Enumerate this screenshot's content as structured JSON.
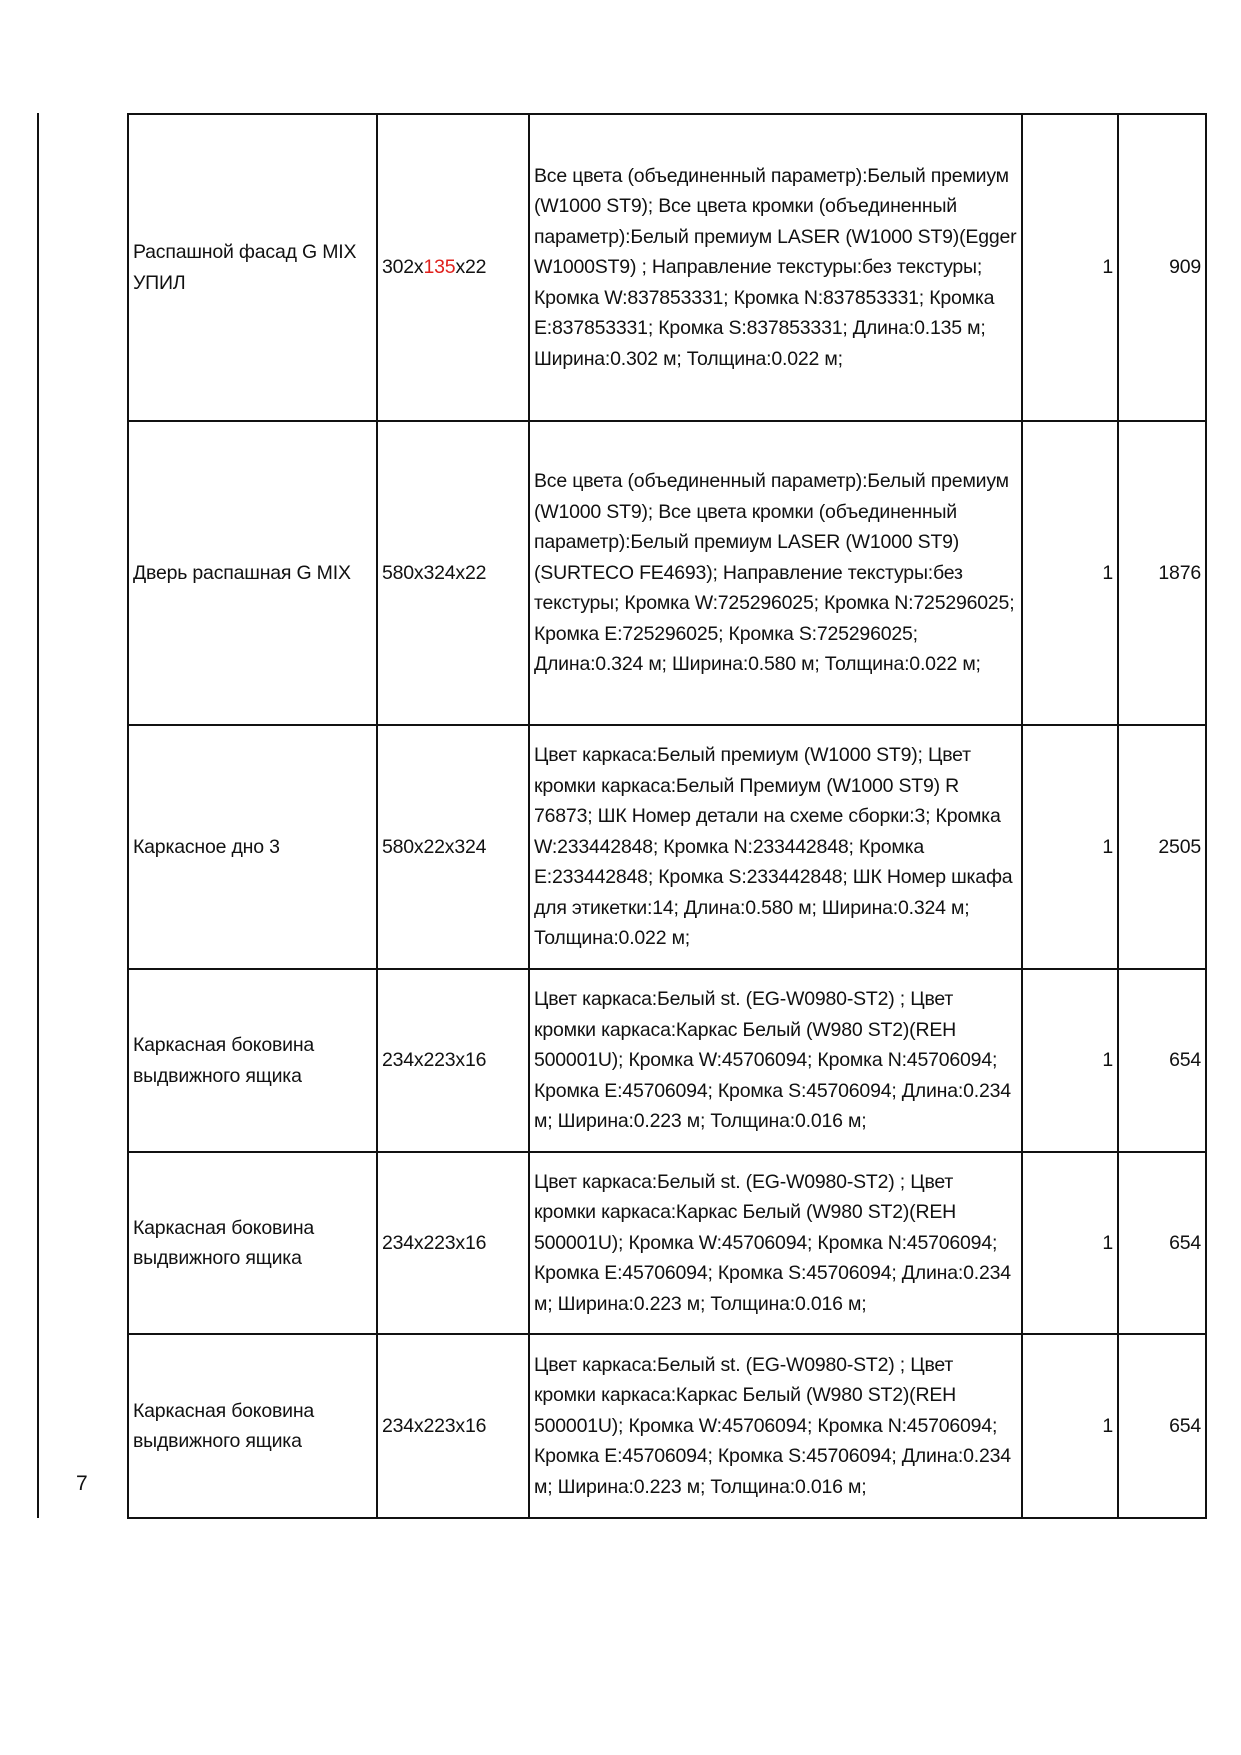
{
  "page_number": "7",
  "highlight_color": "#e0201c",
  "rows": [
    {
      "name": "Распашной фасад G MIX УПИЛ",
      "dims_prefix": "302x",
      "dims_highlight": "135",
      "dims_suffix": "x22",
      "description": "Все цвета (объединенный параметр):Белый премиум (W1000 ST9); Все цвета кромки (объединенный параметр):Белый премиум LASER (W1000 ST9)(Egger W1000ST9) ; Направление текстуры:без текстуры; Кромка W:837853331; Кромка N:837853331; Кромка E:837853331; Кромка S:837853331; Длина:0.135 м; Ширина:0.302 м; Толщина:0.022 м;",
      "qty": "1",
      "price": "909"
    },
    {
      "name": "Дверь распашная G MIX",
      "dims_prefix": "580x324x22",
      "dims_highlight": "",
      "dims_suffix": "",
      "description": "Все цвета (объединенный параметр):Белый премиум (W1000 ST9); Все цвета кромки (объединенный параметр):Белый премиум LASER (W1000 ST9) (SURTECO FE4693); Направление текстуры:без текстуры; Кромка W:725296025; Кромка N:725296025; Кромка E:725296025; Кромка S:725296025; Длина:0.324 м; Ширина:0.580 м; Толщина:0.022 м;",
      "qty": "1",
      "price": "1876"
    },
    {
      "name": "Каркасное дно 3",
      "dims_prefix": "580x22x324",
      "dims_highlight": "",
      "dims_suffix": "",
      "description": "Цвет каркаса:Белый премиум (W1000 ST9); Цвет кромки каркаса:Белый Премиум (W1000 ST9) R 76873; ШК Номер детали на схеме сборки:3; Кромка W:233442848; Кромка N:233442848; Кромка E:233442848; Кромка S:233442848; ШК Номер шкафа для этикетки:14; Длина:0.580 м; Ширина:0.324 м; Толщина:0.022 м;",
      "qty": "1",
      "price": "2505"
    },
    {
      "name": "Каркасная боковина выдвижного ящика",
      "dims_prefix": "234x223x16",
      "dims_highlight": "",
      "dims_suffix": "",
      "description": "Цвет каркаса:Белый st. (EG-W0980-ST2) ; Цвет кромки каркаса:Каркас Белый (W980 ST2)(REH 500001U); Кромка W:45706094; Кромка N:45706094; Кромка E:45706094; Кромка S:45706094; Длина:0.234 м; Ширина:0.223 м; Толщина:0.016 м;",
      "qty": "1",
      "price": "654"
    },
    {
      "name": "Каркасная боковина выдвижного ящика",
      "dims_prefix": "234x223x16",
      "dims_highlight": "",
      "dims_suffix": "",
      "description": "Цвет каркаса:Белый st. (EG-W0980-ST2) ; Цвет кромки каркаса:Каркас Белый (W980 ST2)(REH 500001U); Кромка W:45706094; Кромка N:45706094; Кромка E:45706094; Кромка S:45706094; Длина:0.234 м; Ширина:0.223 м; Толщина:0.016 м;",
      "qty": "1",
      "price": "654"
    },
    {
      "name": "Каркасная боковина выдвижного ящика",
      "dims_prefix": "234x223x16",
      "dims_highlight": "",
      "dims_suffix": "",
      "description": "Цвет каркаса:Белый st. (EG-W0980-ST2) ; Цвет кромки каркаса:Каркас Белый (W980 ST2)(REH 500001U); Кромка W:45706094; Кромка N:45706094; Кромка E:45706094; Кромка S:45706094; Длина:0.234 м; Ширина:0.223 м; Толщина:0.016 м;",
      "qty": "1",
      "price": "654"
    }
  ]
}
